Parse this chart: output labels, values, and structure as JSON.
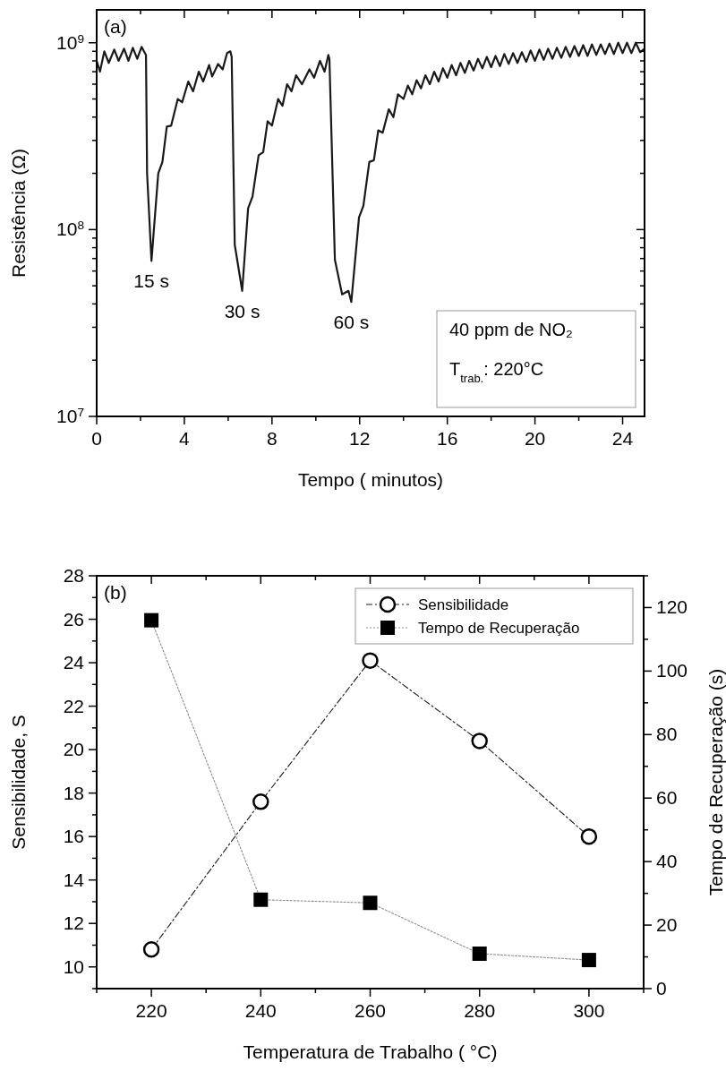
{
  "chart_data": [
    {
      "type": "line",
      "xlabel": "Tempo  ( minutos)",
      "ylabel": "Resistência  (Ω)",
      "log": "y",
      "legend": false,
      "xlim": [
        0,
        25
      ],
      "xticks": [
        0,
        {
          "value": 2,
          "label": null
        },
        4,
        {
          "value": 6,
          "label": null
        },
        8,
        {
          "value": 10,
          "label": null
        },
        12,
        {
          "value": 14,
          "label": null
        },
        16,
        {
          "value": 18,
          "label": null
        },
        20,
        {
          "value": 22,
          "label": null
        },
        24
      ],
      "ylim": [
        10000000.0,
        1500000000.0
      ],
      "yticks": [
        {
          "value": 10000000.0,
          "label": "10$^{7}$"
        },
        {
          "value": 20000000.0,
          "label": null
        },
        {
          "value": 30000000.0,
          "label": null
        },
        {
          "value": 40000000.0,
          "label": null
        },
        {
          "value": 50000000.0,
          "label": null
        },
        {
          "value": 60000000.0,
          "label": null
        },
        {
          "value": 70000000.0,
          "label": null
        },
        {
          "value": 80000000.0,
          "label": null
        },
        {
          "value": 90000000.0,
          "label": null
        },
        {
          "value": 100000000.0,
          "label": "10$^{8}$"
        },
        {
          "value": 200000000.0,
          "label": null
        },
        {
          "value": 300000000.0,
          "label": null
        },
        {
          "value": 400000000.0,
          "label": null
        },
        {
          "value": 500000000.0,
          "label": null
        },
        {
          "value": 600000000.0,
          "label": null
        },
        {
          "value": 700000000.0,
          "label": null
        },
        {
          "value": 800000000.0,
          "label": null
        },
        {
          "value": 900000000.0,
          "label": null
        },
        {
          "value": 1000000000.0,
          "label": "10$^{9}$"
        }
      ],
      "annotations": [
        "(a)",
        {
          "text": "15 s",
          "x": 2.5,
          "y": 68000000.0
        },
        {
          "text": "30 s",
          "x": 6.64,
          "y": 47000000.0
        },
        {
          "text": "60 s",
          "x": 11.62,
          "y": 41000000.0
        },
        "40 ppm de NO₂",
        "T$_{trab.}$: 220°C"
      ],
      "series": [
        {
          "color": "#000000",
          "line_style": "solid",
          "x": [
            0,
            0.15,
            0.35,
            0.55,
            0.8,
            1.0,
            1.25,
            1.45,
            1.65,
            1.85,
            2.05,
            2.25,
            2.3,
            2.5,
            2.81,
            3.0,
            3.2,
            3.4,
            3.7,
            3.9,
            4.18,
            4.4,
            4.66,
            4.86,
            5.13,
            5.27,
            5.54,
            5.75,
            5.95,
            6.1,
            6.16,
            6.3,
            6.64,
            6.91,
            7.11,
            7.39,
            7.6,
            7.8,
            8.0,
            8.28,
            8.48,
            8.69,
            8.89,
            9.1,
            9.37,
            9.71,
            9.92,
            10.19,
            10.4,
            10.57,
            10.62,
            10.87,
            11.2,
            11.49,
            11.62,
            11.97,
            12.17,
            12.44,
            12.65,
            12.85,
            13.05,
            13.33,
            13.54,
            13.75,
            14.0,
            14.2,
            14.4,
            14.6,
            14.8,
            15.0,
            15.2,
            15.4,
            15.6,
            15.8,
            16.0,
            16.2,
            16.4,
            16.6,
            16.8,
            17.0,
            17.2,
            17.4,
            17.6,
            17.8,
            18.0,
            18.2,
            18.4,
            18.6,
            18.8,
            19.0,
            19.2,
            19.4,
            19.6,
            19.8,
            20.0,
            20.2,
            20.4,
            20.6,
            20.8,
            21.0,
            21.2,
            21.4,
            21.6,
            21.8,
            22.0,
            22.2,
            22.4,
            22.6,
            22.8,
            23.0,
            23.2,
            23.4,
            23.6,
            23.8,
            24.0,
            24.2,
            24.4,
            24.6,
            24.8,
            25.0
          ],
          "values": [
            800000000.0,
            700000000.0,
            900000000.0,
            780000000.0,
            920000000.0,
            800000000.0,
            930000000.0,
            800000000.0,
            940000000.0,
            820000000.0,
            950000000.0,
            860000000.0,
            200000000.0,
            68000000.0,
            200000000.0,
            230000000.0,
            356000000.0,
            360000000.0,
            500000000.0,
            480000000.0,
            620000000.0,
            550000000.0,
            700000000.0,
            620000000.0,
            760000000.0,
            660000000.0,
            770000000.0,
            720000000.0,
            880000000.0,
            900000000.0,
            840000000.0,
            83000000.0,
            47000000.0,
            130000000.0,
            150000000.0,
            250000000.0,
            260000000.0,
            380000000.0,
            360000000.0,
            500000000.0,
            460000000.0,
            600000000.0,
            550000000.0,
            670000000.0,
            600000000.0,
            720000000.0,
            650000000.0,
            800000000.0,
            700000000.0,
            860000000.0,
            820000000.0,
            69000000.0,
            45000000.0,
            47000000.0,
            41000000.0,
            116000000.0,
            134000000.0,
            230000000.0,
            235000000.0,
            340000000.0,
            330000000.0,
            440000000.0,
            400000000.0,
            530000000.0,
            500000000.0,
            590000000.0,
            530000000.0,
            630000000.0,
            570000000.0,
            670000000.0,
            600000000.0,
            700000000.0,
            620000000.0,
            730000000.0,
            650000000.0,
            760000000.0,
            670000000.0,
            780000000.0,
            690000000.0,
            800000000.0,
            710000000.0,
            820000000.0,
            730000000.0,
            840000000.0,
            740000000.0,
            850000000.0,
            750000000.0,
            870000000.0,
            770000000.0,
            880000000.0,
            780000000.0,
            890000000.0,
            790000000.0,
            910000000.0,
            800000000.0,
            920000000.0,
            810000000.0,
            930000000.0,
            820000000.0,
            940000000.0,
            830000000.0,
            950000000.0,
            840000000.0,
            960000000.0,
            850000000.0,
            970000000.0,
            850000000.0,
            980000000.0,
            860000000.0,
            980000000.0,
            870000000.0,
            990000000.0,
            870000000.0,
            1000000000.0,
            880000000.0,
            1000000000.0,
            880000000.0,
            1000000000.0,
            890000000.0,
            930000000.0
          ]
        }
      ]
    },
    {
      "type": "line",
      "xlabel": "Temperatura de Trabalho  ( °C)",
      "ylabel": "Sensibilidade, S",
      "y2label": "Tempo de Recuperação  (s)",
      "legend": "top right",
      "xlim": [
        210,
        310
      ],
      "xticks": [
        {
          "value": 210,
          "label": null
        },
        220,
        {
          "value": 230,
          "label": null
        },
        240,
        {
          "value": 250,
          "label": null
        },
        260,
        {
          "value": 270,
          "label": null
        },
        280,
        {
          "value": 290,
          "label": null
        },
        300,
        {
          "value": 310,
          "label": null
        }
      ],
      "ylim": [
        9,
        28
      ],
      "yticks": [
        {
          "value": 9,
          "label": null
        },
        10,
        {
          "value": 11,
          "label": null
        },
        12,
        {
          "value": 13,
          "label": null
        },
        14,
        {
          "value": 15,
          "label": null
        },
        16,
        {
          "value": 17,
          "label": null
        },
        18,
        {
          "value": 19,
          "label": null
        },
        20,
        {
          "value": 21,
          "label": null
        },
        22,
        {
          "value": 23,
          "label": null
        },
        24,
        {
          "value": 25,
          "label": null
        },
        26,
        {
          "value": 27,
          "label": null
        },
        28
      ],
      "y2lim": [
        0,
        130
      ],
      "y2ticks": [
        0,
        {
          "value": 10,
          "label": null
        },
        20,
        {
          "value": 30,
          "label": null
        },
        40,
        {
          "value": 50,
          "label": null
        },
        60,
        {
          "value": 70,
          "label": null
        },
        80,
        {
          "value": 90,
          "label": null
        },
        100,
        {
          "value": 110,
          "label": null
        },
        120,
        {
          "value": 130,
          "label": null
        }
      ],
      "annotations": [
        "(b)"
      ],
      "series": [
        {
          "name": "Sensibilidade",
          "color": "#000000",
          "marker": "circle",
          "line_style": "dashed",
          "x": [
            220,
            240,
            260,
            280,
            300
          ],
          "values": [
            10.8,
            17.6,
            24.1,
            20.4,
            16.0
          ]
        },
        {
          "name": "Tempo de Recuperação",
          "color": "#000000",
          "marker": "square",
          "line_style": "dotted",
          "axis": "y2",
          "x": [
            220,
            240,
            260,
            280,
            300
          ],
          "values": [
            116,
            28,
            27,
            11,
            9
          ]
        }
      ]
    }
  ]
}
